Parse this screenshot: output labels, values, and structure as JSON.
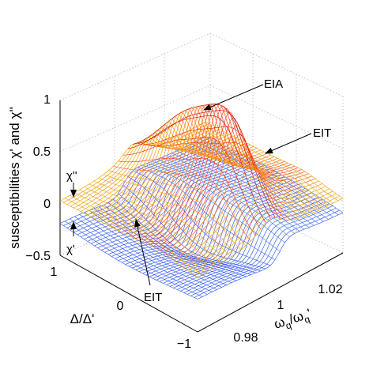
{
  "chart_data": {
    "type": "surface",
    "title": "",
    "zlabel": "susceptibilities χ' and χ''",
    "ylabel": "Δ/Δ'",
    "xlabel": "ωq/ωq'",
    "xlabel_main": "ω",
    "xlabel_sub": "q",
    "xlabel_den_main": "/ω",
    "xlabel_den_sub": "q",
    "xlabel_suffix": "'",
    "x_ticks": [
      "0.98",
      "1",
      "1.02"
    ],
    "y_ticks": [
      "1",
      "0",
      "−1"
    ],
    "z_ticks": [
      "1",
      "0.5",
      "0",
      "−0.5"
    ],
    "xlim": [
      0.97,
      1.03
    ],
    "ylim": [
      -1,
      1
    ],
    "zlim": [
      -0.5,
      1
    ],
    "grid": true,
    "series": [
      {
        "name": "χ''",
        "peak_label": "EIA",
        "peak_value": 0.87,
        "colors": [
          "#e8a800",
          "#ff9f1a",
          "#ff2020",
          "#c80000"
        ]
      },
      {
        "name": "χ'",
        "colors": [
          "#1c3cff",
          "#4a78f0",
          "#30e6f0"
        ]
      }
    ],
    "annotations": [
      {
        "text": "EIA"
      },
      {
        "text": "EIT"
      },
      {
        "text": "EIT"
      },
      {
        "text": "χ''"
      },
      {
        "text": "χ'"
      }
    ]
  }
}
